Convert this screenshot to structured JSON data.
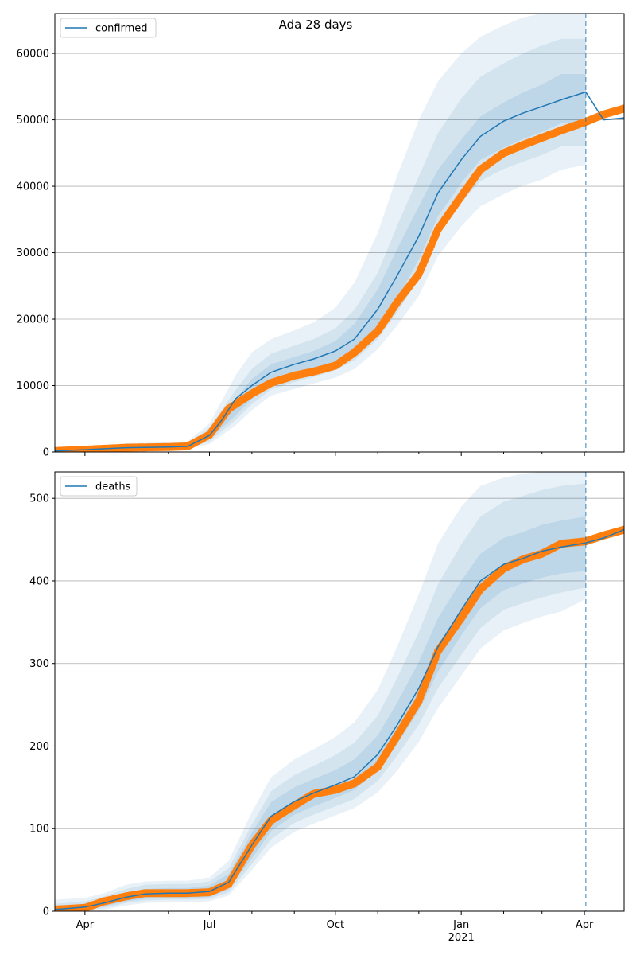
{
  "title": "Ada 28 days",
  "chart_data": [
    {
      "type": "line",
      "name": "confirmed-panel",
      "legend": "confirmed",
      "legend_position": "top-left",
      "grid": "horizontal",
      "xlim": [
        "2020-03-10",
        "2021-04-30"
      ],
      "ylim": [
        0,
        66000
      ],
      "yticks": [
        0,
        10000,
        20000,
        30000,
        40000,
        50000,
        60000
      ],
      "ytick_labels": [
        "0",
        "10000",
        "20000",
        "30000",
        "40000",
        "50000",
        "60000"
      ],
      "forecast_start": "2021-04-02",
      "colors": {
        "model": "#1f77b4",
        "observed": "#ff7f0e",
        "band": "#1f77b4"
      },
      "model": {
        "x": [
          "2020-03-10",
          "2020-04-01",
          "2020-05-01",
          "2020-06-01",
          "2020-06-15",
          "2020-07-01",
          "2020-07-10",
          "2020-07-20",
          "2020-08-01",
          "2020-08-15",
          "2020-09-01",
          "2020-09-15",
          "2020-10-01",
          "2020-10-15",
          "2020-11-01",
          "2020-11-15",
          "2020-12-01",
          "2020-12-15",
          "2021-01-01",
          "2021-01-15",
          "2021-02-01",
          "2021-02-15",
          "2021-03-01",
          "2021-03-15",
          "2021-04-02",
          "2021-04-15",
          "2021-04-30"
        ],
        "y": [
          150,
          350,
          650,
          750,
          850,
          2500,
          4800,
          8000,
          10000,
          12000,
          13200,
          14000,
          15200,
          17000,
          21500,
          26500,
          32500,
          39000,
          44000,
          47500,
          49800,
          51000,
          52000,
          53000,
          54200,
          50000,
          50300
        ]
      },
      "observed": {
        "x": [
          "2020-03-10",
          "2020-04-01",
          "2020-05-01",
          "2020-06-01",
          "2020-06-15",
          "2020-07-01",
          "2020-07-15",
          "2020-08-01",
          "2020-08-15",
          "2020-09-01",
          "2020-09-15",
          "2020-10-01",
          "2020-10-15",
          "2020-11-01",
          "2020-11-15",
          "2020-12-01",
          "2020-12-15",
          "2021-01-01",
          "2021-01-15",
          "2021-02-01",
          "2021-02-15",
          "2021-03-01",
          "2021-03-15",
          "2021-04-02",
          "2021-04-15",
          "2021-04-30"
        ],
        "y": [
          150,
          350,
          650,
          750,
          850,
          2600,
          6500,
          8800,
          10400,
          11500,
          12100,
          13000,
          15000,
          18200,
          22500,
          26800,
          33500,
          38500,
          42500,
          45000,
          46200,
          47300,
          48400,
          49700,
          50800,
          51700
        ]
      },
      "band_inner": {
        "lower": [
          50,
          200,
          400,
          550,
          650,
          2000,
          5500,
          8000,
          10200,
          11400,
          12200,
          13300,
          15000,
          18500,
          23000,
          29000,
          35500,
          40500,
          44000,
          45800,
          47100,
          48200,
          49500,
          49500,
          50000
        ],
        "upper": [
          250,
          500,
          900,
          1000,
          1100,
          3200,
          8000,
          11000,
          13200,
          14300,
          15200,
          16700,
          19300,
          24500,
          30500,
          37000,
          42500,
          47000,
          50500,
          52600,
          54100,
          55300,
          56900,
          56900,
          57500
        ]
      },
      "band_mid": {
        "lower": [
          0,
          150,
          300,
          450,
          550,
          1600,
          4800,
          7200,
          9400,
          10500,
          11300,
          12300,
          13800,
          17000,
          21000,
          26000,
          32500,
          37500,
          40800,
          42600,
          43700,
          44700,
          46000,
          46000,
          46500
        ],
        "upper": [
          350,
          650,
          1100,
          1250,
          1350,
          3700,
          9300,
          12500,
          14800,
          16000,
          17000,
          18600,
          21400,
          27000,
          34000,
          41500,
          48000,
          53200,
          56500,
          58500,
          60000,
          61200,
          62200,
          62200,
          62700
        ]
      },
      "band_outer": {
        "lower": [
          0,
          100,
          200,
          350,
          450,
          1200,
          4000,
          6300,
          8500,
          9500,
          10300,
          11200,
          12500,
          15500,
          19000,
          23500,
          29500,
          34000,
          37000,
          38800,
          40100,
          41000,
          42500,
          43200,
          43500
        ],
        "upper": [
          450,
          800,
          1300,
          1500,
          1600,
          4300,
          11500,
          15000,
          17000,
          18300,
          19500,
          21700,
          25500,
          33000,
          41500,
          50000,
          55800,
          60000,
          62500,
          64200,
          65400,
          66000,
          66200,
          66200,
          66500
        ]
      },
      "band_x": [
        "2020-03-10",
        "2020-04-01",
        "2020-05-01",
        "2020-06-01",
        "2020-06-15",
        "2020-07-01",
        "2020-07-20",
        "2020-08-01",
        "2020-08-15",
        "2020-09-01",
        "2020-09-15",
        "2020-10-01",
        "2020-10-15",
        "2020-11-01",
        "2020-11-15",
        "2020-12-01",
        "2020-12-15",
        "2021-01-01",
        "2021-01-15",
        "2021-02-01",
        "2021-02-15",
        "2021-03-01",
        "2021-03-15",
        "2021-04-02",
        "2021-04-02"
      ]
    },
    {
      "type": "line",
      "name": "deaths-panel",
      "legend": "deaths",
      "legend_position": "top-left",
      "grid": "horizontal",
      "xlim": [
        "2020-03-10",
        "2021-04-30"
      ],
      "ylim": [
        0,
        532
      ],
      "yticks": [
        0,
        100,
        200,
        300,
        400,
        500
      ],
      "ytick_labels": [
        "0",
        "100",
        "200",
        "300",
        "400",
        "500"
      ],
      "xticks": [
        "2020-04-01",
        "2020-07-01",
        "2020-10-01",
        "2021-01-01",
        "2021-04-01"
      ],
      "xtick_labels": [
        "Apr",
        "Jul",
        "Oct",
        "Jan",
        "Apr"
      ],
      "xtick_sublabel": "2021",
      "forecast_start": "2021-04-02",
      "colors": {
        "model": "#1f77b4",
        "observed": "#ff7f0e",
        "band": "#1f77b4"
      },
      "model": {
        "x": [
          "2020-03-10",
          "2020-04-01",
          "2020-04-15",
          "2020-05-01",
          "2020-05-15",
          "2020-06-01",
          "2020-06-15",
          "2020-07-01",
          "2020-07-15",
          "2020-08-01",
          "2020-08-15",
          "2020-09-01",
          "2020-09-15",
          "2020-10-01",
          "2020-10-15",
          "2020-11-01",
          "2020-11-15",
          "2020-12-01",
          "2020-12-15",
          "2021-01-01",
          "2021-01-15",
          "2021-02-01",
          "2021-02-15",
          "2021-03-01",
          "2021-03-15",
          "2021-04-02",
          "2021-04-15",
          "2021-04-30"
        ],
        "y": [
          2,
          5,
          10,
          17,
          21,
          22,
          22,
          24,
          35,
          80,
          115,
          133,
          143,
          153,
          163,
          190,
          225,
          270,
          320,
          365,
          400,
          420,
          427,
          436,
          441,
          446,
          452,
          462
        ]
      },
      "observed": {
        "x": [
          "2020-03-10",
          "2020-04-01",
          "2020-04-15",
          "2020-05-01",
          "2020-05-15",
          "2020-06-01",
          "2020-06-15",
          "2020-07-01",
          "2020-07-15",
          "2020-08-01",
          "2020-08-15",
          "2020-09-01",
          "2020-09-15",
          "2020-10-01",
          "2020-10-15",
          "2020-11-01",
          "2020-11-15",
          "2020-12-01",
          "2020-12-15",
          "2021-01-01",
          "2021-01-15",
          "2021-02-01",
          "2021-02-15",
          "2021-03-01",
          "2021-03-15",
          "2021-04-02",
          "2021-04-15",
          "2021-04-30"
        ],
        "y": [
          2,
          4,
          12,
          18,
          22,
          22,
          22,
          23,
          33,
          80,
          110,
          128,
          142,
          147,
          155,
          175,
          212,
          255,
          315,
          355,
          390,
          415,
          426,
          433,
          445,
          448,
          455,
          462
        ]
      },
      "band_inner": {
        "lower": [
          0,
          2,
          6,
          12,
          15,
          16,
          16,
          17,
          27,
          64,
          97,
          117,
          127,
          137,
          147,
          171,
          202,
          243,
          290,
          334,
          367,
          389,
          397,
          404,
          409,
          412,
          414
        ],
        "upper": [
          5,
          9,
          15,
          22,
          27,
          28,
          28,
          31,
          45,
          95,
          132,
          150,
          160,
          171,
          184,
          213,
          252,
          302,
          355,
          400,
          433,
          452,
          459,
          468,
          473,
          478,
          480
        ]
      },
      "band_mid": {
        "lower": [
          0,
          1,
          4,
          10,
          13,
          14,
          14,
          15,
          23,
          57,
          87,
          107,
          117,
          127,
          136,
          158,
          188,
          226,
          270,
          310,
          343,
          365,
          373,
          380,
          386,
          392,
          394
        ],
        "upper": [
          9,
          12,
          18,
          27,
          32,
          33,
          33,
          36,
          52,
          105,
          145,
          165,
          176,
          189,
          204,
          237,
          282,
          338,
          396,
          444,
          478,
          496,
          503,
          510,
          515,
          518,
          520
        ],
        "note": ""
      },
      "band_outer": {
        "lower": [
          0,
          0,
          2,
          7,
          10,
          11,
          11,
          12,
          19,
          50,
          77,
          96,
          106,
          116,
          125,
          144,
          170,
          205,
          246,
          285,
          318,
          340,
          349,
          357,
          363,
          378,
          380
        ],
        "upper": [
          14,
          16,
          22,
          32,
          36,
          37,
          37,
          41,
          61,
          120,
          162,
          184,
          196,
          211,
          229,
          268,
          320,
          384,
          445,
          490,
          515,
          525,
          530,
          532,
          532,
          532,
          532
        ]
      },
      "band_x": [
        "2020-03-10",
        "2020-04-01",
        "2020-04-15",
        "2020-05-01",
        "2020-05-15",
        "2020-06-01",
        "2020-06-15",
        "2020-07-01",
        "2020-07-15",
        "2020-08-01",
        "2020-08-15",
        "2020-09-01",
        "2020-09-15",
        "2020-10-01",
        "2020-10-15",
        "2020-11-01",
        "2020-11-15",
        "2020-12-01",
        "2020-12-15",
        "2021-01-01",
        "2021-01-15",
        "2021-02-01",
        "2021-02-15",
        "2021-03-01",
        "2021-03-15",
        "2021-04-02",
        "2021-04-02"
      ]
    }
  ]
}
